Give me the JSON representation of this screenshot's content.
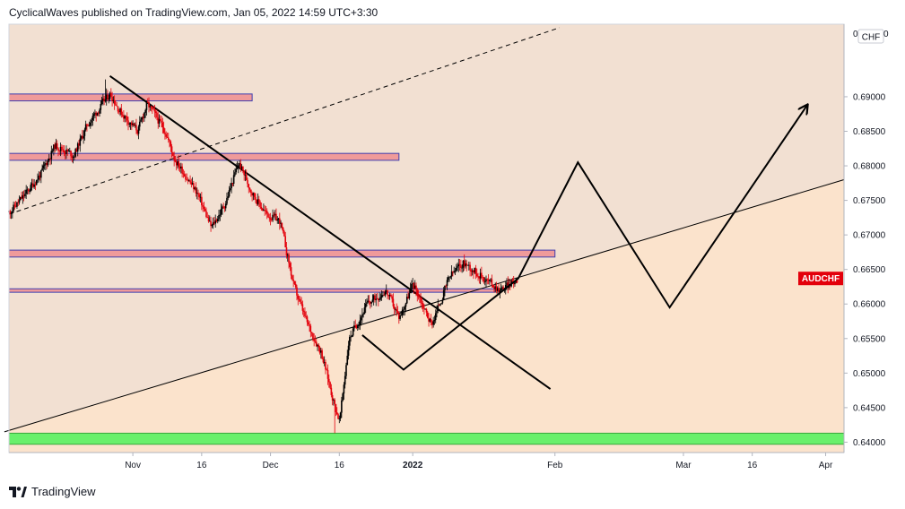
{
  "header": {
    "text": "CyclicalWaves published on TradingView.com, Jan 05, 2022 14:59 UTC+3:30"
  },
  "footer": {
    "brand": "TradingView",
    "logo_icon": "tradingview-logo-icon"
  },
  "colors": {
    "zone_upper": "#f2e0d2",
    "zone_lower": "#fbe3cc",
    "resistance_fill": "#ef9a9a",
    "resistance_border": "#3f3fb0",
    "support_fill": "#69f06b",
    "candle_up": "#000000",
    "candle_down": "#e3000b",
    "price_tag": "#e3000b"
  },
  "chart_data": {
    "type": "candlestick",
    "symbol": "AUDCHF",
    "currency": "CHF",
    "y_axis": {
      "ylim": [
        0.6385,
        0.7005
      ],
      "ticks": [
        "0.69000",
        "0.68500",
        "0.68000",
        "0.67500",
        "0.67000",
        "0.66500",
        "0.66000",
        "0.65500",
        "0.65000",
        "0.64500",
        "0.64000"
      ],
      "ticks_values": [
        0.69,
        0.685,
        0.68,
        0.675,
        0.67,
        0.665,
        0.66,
        0.655,
        0.65,
        0.645,
        0.64
      ],
      "top_partial": "0"
    },
    "x_axis": {
      "start": "2021-10-05",
      "end": "2022-04-05",
      "ticks": [
        "Nov",
        "16",
        "Dec",
        "16",
        "2022",
        "Feb",
        "Mar",
        "16",
        "Apr"
      ],
      "tick_dates": [
        "2021-11-01",
        "2021-11-16",
        "2021-12-01",
        "2021-12-16",
        "2022-01-01",
        "2022-02-01",
        "2022-03-01",
        "2022-03-16",
        "2022-04-01"
      ]
    },
    "current_price_label": "AUDCHF",
    "current_price": 0.6637,
    "price_path": [
      [
        "2021-10-05",
        0.6733
      ],
      [
        "2021-10-08",
        0.6755
      ],
      [
        "2021-10-12",
        0.679
      ],
      [
        "2021-10-15",
        0.683
      ],
      [
        "2021-10-19",
        0.6815
      ],
      [
        "2021-10-22",
        0.686
      ],
      [
        "2021-10-27",
        0.6905
      ],
      [
        "2021-10-29",
        0.688
      ],
      [
        "2021-11-02",
        0.685
      ],
      [
        "2021-11-04",
        0.689
      ],
      [
        "2021-11-08",
        0.685
      ],
      [
        "2021-11-10",
        0.681
      ],
      [
        "2021-11-12",
        0.679
      ],
      [
        "2021-11-15",
        0.676
      ],
      [
        "2021-11-18",
        0.671
      ],
      [
        "2021-11-21",
        0.6745
      ],
      [
        "2021-11-24",
        0.6805
      ],
      [
        "2021-11-27",
        0.676
      ],
      [
        "2021-11-30",
        0.673
      ],
      [
        "2021-12-03",
        0.672
      ],
      [
        "2021-12-06",
        0.6625
      ],
      [
        "2021-12-09",
        0.657
      ],
      [
        "2021-12-12",
        0.653
      ],
      [
        "2021-12-15",
        0.645
      ],
      [
        "2021-12-16",
        0.643
      ],
      [
        "2021-12-18",
        0.655
      ],
      [
        "2021-12-22",
        0.66
      ],
      [
        "2021-12-26",
        0.662
      ],
      [
        "2021-12-29",
        0.658
      ],
      [
        "2022-01-01",
        0.663
      ],
      [
        "2022-01-05",
        0.657
      ],
      [
        "2022-01-09",
        0.664
      ],
      [
        "2022-01-12",
        0.666
      ],
      [
        "2022-01-16",
        0.664
      ],
      [
        "2022-01-20",
        0.662
      ],
      [
        "2022-01-24",
        0.6637
      ]
    ],
    "price_extremes": {
      "high": 0.6925,
      "high_date": "2021-10-26",
      "low": 0.6413,
      "low_date": "2021-12-15"
    },
    "horizontal_zones": [
      {
        "type": "resistance",
        "y0": 0.6894,
        "y1": 0.6904,
        "x0": "2021-10-05",
        "x1": "2021-11-27"
      },
      {
        "type": "resistance",
        "y0": 0.6808,
        "y1": 0.6818,
        "x0": "2021-10-05",
        "x1": "2021-12-29"
      },
      {
        "type": "resistance",
        "y0": 0.6668,
        "y1": 0.6678,
        "x0": "2021-10-05",
        "x1": "2022-02-01"
      },
      {
        "type": "resistance",
        "y0": 0.6617,
        "y1": 0.6622,
        "x0": "2021-10-05",
        "x1": "2022-01-19"
      },
      {
        "type": "support",
        "y0": 0.6397,
        "y1": 0.6413,
        "x0": "2021-10-05",
        "x1": "2022-04-05"
      }
    ],
    "trendlines": [
      {
        "style": "solid",
        "points": [
          [
            "2021-10-04",
            0.6415
          ],
          [
            "2022-04-05",
            0.678
          ]
        ]
      },
      {
        "style": "dashed",
        "points": [
          [
            "2021-10-05",
            0.673
          ],
          [
            "2022-02-02",
            0.7
          ]
        ]
      },
      {
        "style": "solid-thick",
        "points": [
          [
            "2021-10-27",
            0.693
          ],
          [
            "2022-01-31",
            0.6477
          ]
        ]
      }
    ],
    "projection_path": [
      [
        "2021-12-21",
        0.6555
      ],
      [
        "2021-12-30",
        0.6505
      ],
      [
        "2022-01-24",
        0.6637
      ],
      [
        "2022-02-06",
        0.6805
      ],
      [
        "2022-02-26",
        0.6595
      ],
      [
        "2022-03-28",
        0.6888
      ]
    ]
  }
}
